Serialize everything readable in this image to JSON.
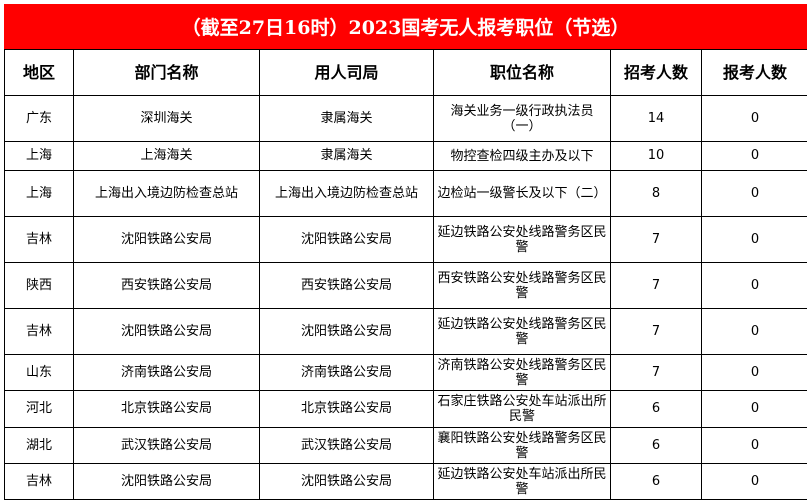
{
  "title": "（截至27日16时）2023国考无人报考职位（节选）",
  "headers": [
    "地区",
    "部门名称",
    "用人司局",
    "职位名称",
    "招考人数",
    "报考人数"
  ],
  "rows": [
    [
      "广东",
      "深圳海关",
      "隶属海关",
      "海关业务一级行政执法员（一）",
      "14",
      "0"
    ],
    [
      "上海",
      "上海海关",
      "隶属海关",
      "物控查检四级主办及以下",
      "10",
      "0"
    ],
    [
      "上海",
      "上海出入境边防检查总站",
      "上海出入境边防检查总站",
      "边检站一级警长及以下（二）",
      "8",
      "0"
    ],
    [
      "吉林",
      "沈阳铁路公安局",
      "沈阳铁路公安局",
      "延边铁路公安处线路警务区民警",
      "7",
      "0"
    ],
    [
      "陕西",
      "西安铁路公安局",
      "西安铁路公安局",
      "西安铁路公安处线路警务区民警",
      "7",
      "0"
    ],
    [
      "吉林",
      "沈阳铁路公安局",
      "沈阳铁路公安局",
      "延边铁路公安处线路警务区民警",
      "7",
      "0"
    ],
    [
      "山东",
      "济南铁路公安局",
      "济南铁路公安局",
      "济南铁路公安处线路警务区民警",
      "7",
      "0"
    ],
    [
      "河北",
      "北京铁路公安局",
      "北京铁路公安局",
      "石家庄铁路公安处车站派出所民警",
      "6",
      "0"
    ],
    [
      "湖北",
      "武汉铁路公安局",
      "武汉铁路公安局",
      "襄阳铁路公安处线路警务区民警",
      "6",
      "0"
    ],
    [
      "吉林",
      "沈阳铁路公安局",
      "沈阳铁路公安局",
      "延边铁路公安处车站派出所民警",
      "6",
      "0"
    ]
  ],
  "colors": {
    "title_bg": "#ff0000",
    "title_text": "#ffffff"
  }
}
